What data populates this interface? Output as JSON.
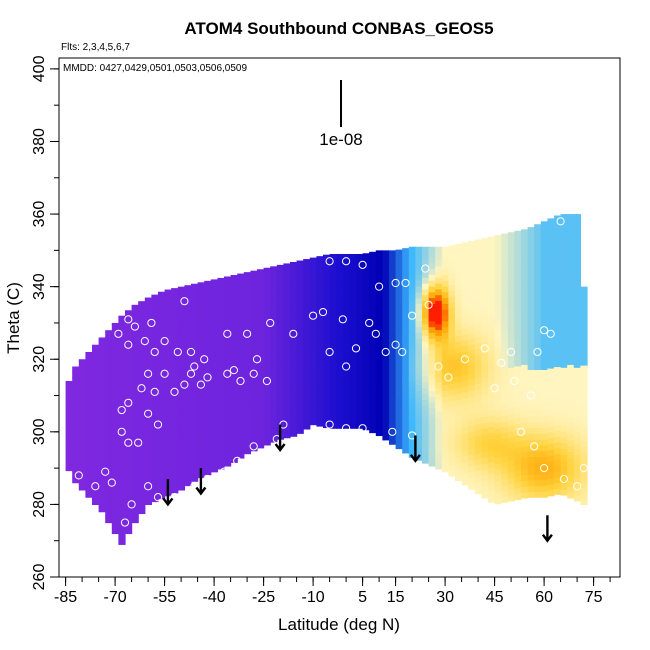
{
  "chart_data": {
    "type": "heatmap",
    "title": "ATOM4 Southbound CONBAS_GEOS5",
    "subtitle_flights": "Flts: 2,3,4,5,6,7",
    "subtitle_dates": "MMDD: 0427,0429,0501,0503,0506,0509",
    "xlabel": "Latitude (deg N)",
    "ylabel": "Theta (C)",
    "xlim": [
      -87,
      83
    ],
    "ylim": [
      260,
      403
    ],
    "x_ticks": [
      -85,
      -70,
      -55,
      -40,
      -25,
      -10,
      5,
      15,
      30,
      45,
      60,
      75
    ],
    "x_minor_step": 5,
    "y_ticks": [
      260,
      280,
      300,
      320,
      340,
      360,
      380,
      400
    ],
    "y_minor_step": 10,
    "scale_bar_label": "1e-08",
    "colors": {
      "purple": "#8a2be2",
      "blue": "#1e0fd0",
      "navy": "#0000b4",
      "cyan": "#39b6ff",
      "pale": "#fff5c0",
      "yellow": "#ffd23c",
      "orange": "#ffa000",
      "red": "#ff1e00"
    },
    "coverage": {
      "lat": [
        -85,
        -82,
        -78,
        -74,
        -70,
        -68,
        -64,
        -60,
        -55,
        -50,
        -45,
        -40,
        -35,
        -30,
        -25,
        -20,
        -15,
        -10,
        -5,
        0,
        5,
        10,
        15,
        20,
        25,
        30,
        35,
        40,
        45,
        50,
        55,
        60,
        65,
        70,
        72
      ],
      "theta_bottom": [
        291,
        286,
        282,
        278,
        272,
        269,
        275,
        280,
        282,
        284,
        287,
        289,
        291,
        294,
        296,
        298,
        299,
        302,
        301,
        301,
        301,
        299,
        296,
        293,
        291,
        289,
        286,
        283,
        280,
        281,
        282,
        282,
        283,
        281,
        280
      ],
      "theta_top": [
        312,
        318,
        322,
        326,
        330,
        332,
        335,
        337,
        339,
        340,
        341,
        342,
        343,
        344,
        345,
        346,
        347,
        348,
        349,
        349,
        349,
        350,
        350,
        351,
        351,
        351,
        352,
        353,
        354,
        355,
        356,
        358,
        360,
        360,
        340
      ]
    },
    "hotspots": [
      {
        "lat": 27,
        "theta": 333,
        "sx": 4,
        "sy": 7,
        "amp": 3.5
      },
      {
        "lat": 33,
        "theta": 318,
        "sx": 10,
        "sy": 9,
        "amp": 1.2
      },
      {
        "lat": 60,
        "theta": 290,
        "sx": 12,
        "sy": 9,
        "amp": 1.5
      },
      {
        "lat": 43,
        "theta": 297,
        "sx": 10,
        "sy": 7,
        "amp": 0.9
      }
    ],
    "flight_points": [
      [
        -81,
        288
      ],
      [
        -76,
        285
      ],
      [
        -73,
        289
      ],
      [
        -71,
        286
      ],
      [
        -67,
        275
      ],
      [
        -65,
        280
      ],
      [
        -60,
        285
      ],
      [
        -57,
        282
      ],
      [
        -68,
        300
      ],
      [
        -66,
        297
      ],
      [
        -63,
        297
      ],
      [
        -60,
        305
      ],
      [
        -57,
        302
      ],
      [
        -68,
        306
      ],
      [
        -66,
        308
      ],
      [
        -62,
        312
      ],
      [
        -58,
        311
      ],
      [
        -60,
        316
      ],
      [
        -55,
        316
      ],
      [
        -52,
        311
      ],
      [
        -49,
        313
      ],
      [
        -47,
        316
      ],
      [
        -44,
        313
      ],
      [
        -42,
        315
      ],
      [
        -36,
        316
      ],
      [
        -32,
        314
      ],
      [
        -28,
        316
      ],
      [
        -24,
        314
      ],
      [
        -46,
        318
      ],
      [
        -43,
        320
      ],
      [
        -47,
        322
      ],
      [
        -51,
        322
      ],
      [
        -55,
        325
      ],
      [
        -58,
        322
      ],
      [
        -61,
        325
      ],
      [
        -66,
        324
      ],
      [
        -69,
        327
      ],
      [
        -64,
        329
      ],
      [
        -59,
        330
      ],
      [
        -66,
        331
      ],
      [
        -49,
        336
      ],
      [
        -36,
        327
      ],
      [
        -30,
        327
      ],
      [
        -23,
        330
      ],
      [
        -16,
        327
      ],
      [
        -10,
        332
      ],
      [
        -7,
        333
      ],
      [
        -1,
        331
      ],
      [
        -5,
        322
      ],
      [
        0,
        318
      ],
      [
        3,
        323
      ],
      [
        7,
        330
      ],
      [
        9,
        327
      ],
      [
        12,
        322
      ],
      [
        15,
        324
      ],
      [
        17,
        322
      ],
      [
        20,
        332
      ],
      [
        -14,
        349
      ],
      [
        -12,
        350
      ],
      [
        -5,
        347
      ],
      [
        0,
        347
      ],
      [
        5,
        346
      ],
      [
        10,
        340
      ],
      [
        15,
        341
      ],
      [
        18,
        341
      ],
      [
        24,
        345
      ],
      [
        25,
        335
      ],
      [
        28,
        318
      ],
      [
        31,
        315
      ],
      [
        36,
        320
      ],
      [
        42,
        323
      ],
      [
        47,
        319
      ],
      [
        50,
        322
      ],
      [
        58,
        322
      ],
      [
        60,
        328
      ],
      [
        62,
        327
      ],
      [
        45,
        312
      ],
      [
        51,
        314
      ],
      [
        56,
        310
      ],
      [
        53,
        300
      ],
      [
        57,
        296
      ],
      [
        60,
        290
      ],
      [
        66,
        287
      ],
      [
        70,
        285
      ],
      [
        72,
        290
      ],
      [
        65,
        358
      ],
      [
        5,
        301
      ],
      [
        0,
        301
      ],
      [
        -5,
        302
      ],
      [
        14,
        300
      ],
      [
        20,
        299
      ],
      [
        -52,
        282
      ],
      [
        -46,
        285
      ],
      [
        -42,
        287
      ],
      [
        -37,
        289
      ],
      [
        -33,
        292
      ],
      [
        -28,
        296
      ],
      [
        -21,
        298
      ],
      [
        -19,
        302
      ],
      [
        -27,
        320
      ],
      [
        -34,
        317
      ]
    ],
    "arrows": [
      {
        "lat": -54,
        "theta_start": 287,
        "theta_end": 280
      },
      {
        "lat": -44,
        "theta_start": 290,
        "theta_end": 283
      },
      {
        "lat": -20,
        "theta_start": 302,
        "theta_end": 295
      },
      {
        "lat": 21,
        "theta_start": 299,
        "theta_end": 292
      },
      {
        "lat": 61,
        "theta_start": 277,
        "theta_end": 270
      }
    ]
  }
}
